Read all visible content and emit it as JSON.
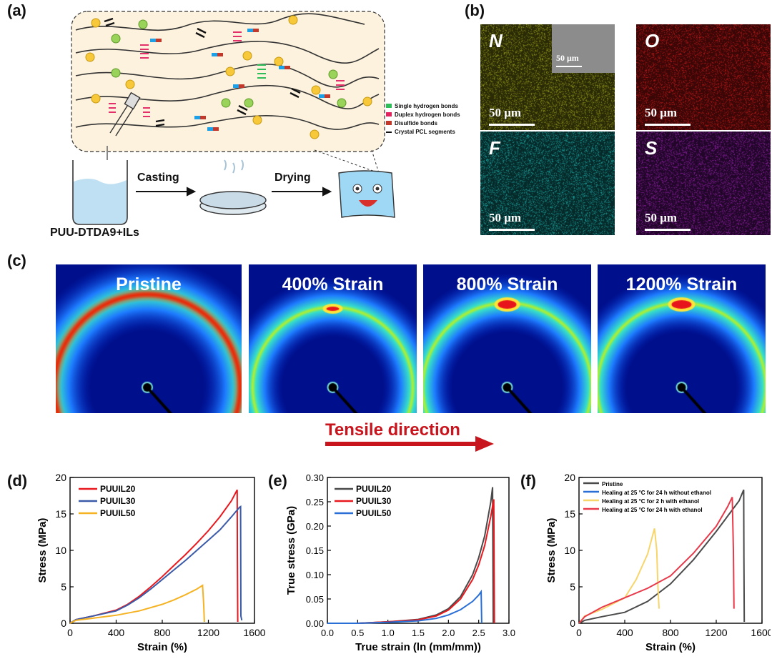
{
  "panels": {
    "a": {
      "label": "(a)",
      "legend": [
        {
          "text": "Single hydrogen bonds",
          "color": "#2ebd59"
        },
        {
          "text": "Duplex hydrogen bonds",
          "color": "#e0245e"
        },
        {
          "text": "Disulfide bonds",
          "color": "#c0392b"
        },
        {
          "text": "Crystal PCL segments",
          "color": "#111111"
        }
      ],
      "process": {
        "casting": "Casting",
        "drying": "Drying",
        "solution": "PUU-DTDA9+ILs"
      }
    },
    "b": {
      "label": "(b)",
      "maps": [
        {
          "element": "N",
          "scale": "50 μm",
          "color": "#2a2a06",
          "dot": "#9aa21a"
        },
        {
          "element": "O",
          "scale": "50 μm",
          "color": "#3a0606",
          "dot": "#c21a1a"
        },
        {
          "element": "F",
          "scale": "50 μm",
          "color": "#062a2a",
          "dot": "#1ba7a3"
        },
        {
          "element": "S",
          "scale": "50 μm",
          "color": "#22062a",
          "dot": "#8e1fa3"
        }
      ],
      "inset_scale": "50 μm"
    },
    "c": {
      "label": "(c)",
      "frames": [
        "Pristine",
        "400% Strain",
        "800% Strain",
        "1200% Strain"
      ],
      "arrow_label": "Tensile direction"
    },
    "d": {
      "label": "(d)"
    },
    "e": {
      "label": "(e)"
    },
    "f": {
      "label": "(f)"
    }
  },
  "chart_data": [
    {
      "id": "d",
      "type": "line",
      "xlabel": "Strain (%)",
      "ylabel": "Stress (MPa)",
      "xlim": [
        0,
        1600
      ],
      "ylim": [
        0,
        20
      ],
      "xticks": [
        0,
        400,
        800,
        1200,
        1600
      ],
      "yticks": [
        0,
        5,
        10,
        15,
        20
      ],
      "legend_position": "top-left",
      "series": [
        {
          "name": "PUUIL20",
          "color": "#e8191e",
          "x": [
            0,
            50,
            200,
            400,
            500,
            600,
            700,
            800,
            900,
            1000,
            1100,
            1200,
            1300,
            1400,
            1450,
            1452,
            1455
          ],
          "y": [
            0,
            0.5,
            1.0,
            1.8,
            2.6,
            3.7,
            5.0,
            6.4,
            7.9,
            9.4,
            11.0,
            12.7,
            14.6,
            16.8,
            18.3,
            9.0,
            0.2
          ]
        },
        {
          "name": "PUUIL30",
          "color": "#3b5ba8",
          "x": [
            0,
            50,
            200,
            400,
            500,
            600,
            700,
            800,
            900,
            1000,
            1100,
            1200,
            1300,
            1400,
            1470,
            1480,
            1482,
            1490
          ],
          "y": [
            0,
            0.5,
            1.0,
            1.7,
            2.5,
            3.5,
            4.7,
            6.0,
            7.3,
            8.6,
            10.0,
            11.4,
            12.8,
            14.6,
            15.9,
            16.0,
            1.0,
            0.4
          ]
        },
        {
          "name": "PUUIL50",
          "color": "#f5b324",
          "x": [
            0,
            50,
            200,
            400,
            600,
            800,
            900,
            1000,
            1100,
            1150,
            1160,
            1165
          ],
          "y": [
            0,
            0.4,
            0.7,
            1.1,
            1.7,
            2.6,
            3.2,
            3.9,
            4.7,
            5.2,
            2.5,
            0.2
          ]
        }
      ]
    },
    {
      "id": "e",
      "type": "line",
      "xlabel": "True strain (ln (mm/mm))",
      "ylabel": "True stress (GPa)",
      "xlim": [
        0,
        3.0
      ],
      "ylim": [
        0,
        0.3
      ],
      "xticks": [
        0.0,
        0.5,
        1.0,
        1.5,
        2.0,
        2.5,
        3.0
      ],
      "yticks": [
        0.0,
        0.05,
        0.1,
        0.15,
        0.2,
        0.25,
        0.3
      ],
      "legend_position": "top-left",
      "series": [
        {
          "name": "PUUIL20",
          "color": "#4a4a4a",
          "x": [
            0,
            0.5,
            1.0,
            1.5,
            1.8,
            2.0,
            2.2,
            2.4,
            2.5,
            2.6,
            2.7,
            2.73,
            2.74
          ],
          "y": [
            0,
            0.0,
            0.003,
            0.008,
            0.017,
            0.03,
            0.055,
            0.1,
            0.135,
            0.18,
            0.25,
            0.28,
            0.0
          ]
        },
        {
          "name": "PUUIL30",
          "color": "#e8191e",
          "x": [
            0,
            0.5,
            1.0,
            1.5,
            1.8,
            2.0,
            2.2,
            2.4,
            2.5,
            2.6,
            2.7,
            2.75,
            2.76
          ],
          "y": [
            0,
            0.0,
            0.003,
            0.007,
            0.015,
            0.027,
            0.05,
            0.09,
            0.12,
            0.16,
            0.22,
            0.255,
            0.0
          ]
        },
        {
          "name": "PUUIL50",
          "color": "#2a6fd6",
          "x": [
            0,
            0.5,
            1.0,
            1.5,
            1.8,
            2.0,
            2.2,
            2.4,
            2.5,
            2.54,
            2.55
          ],
          "y": [
            0,
            0.0,
            0.002,
            0.005,
            0.01,
            0.017,
            0.028,
            0.045,
            0.058,
            0.065,
            0.0
          ]
        }
      ]
    },
    {
      "id": "f",
      "type": "line",
      "xlabel": "Strain (%)",
      "ylabel": "Stress (MPa)",
      "xlim": [
        0,
        1600
      ],
      "ylim": [
        0,
        20
      ],
      "xticks": [
        0,
        400,
        800,
        1200,
        1600
      ],
      "yticks": [
        0,
        5,
        10,
        15,
        20
      ],
      "legend_position": "top-left",
      "series": [
        {
          "name": "Pristine",
          "color": "#4a4a4a",
          "x": [
            0,
            50,
            200,
            400,
            600,
            800,
            1000,
            1200,
            1400,
            1440,
            1442,
            1445
          ],
          "y": [
            0,
            0.4,
            0.9,
            1.5,
            3.0,
            5.4,
            8.7,
            12.6,
            16.8,
            18.3,
            9.0,
            0.2
          ]
        },
        {
          "name": "Healing at 25 °C for 24 h without ethanol",
          "color": "#2a6fd6",
          "x": [],
          "y": []
        },
        {
          "name": "Healing at 25 °C for 2 h with ethanol",
          "color": "#f7d56a",
          "x": [
            0,
            50,
            200,
            400,
            500,
            600,
            660,
            680,
            690,
            700
          ],
          "y": [
            0,
            1.0,
            1.9,
            3.5,
            6.0,
            9.5,
            13.0,
            10.0,
            5.0,
            2.0
          ]
        },
        {
          "name": "Healing at 25 °C for 24 h with ethanol",
          "color": "#e8394a",
          "x": [
            0,
            50,
            200,
            400,
            600,
            800,
            1000,
            1200,
            1300,
            1340,
            1350,
            1355
          ],
          "y": [
            0,
            0.9,
            2.2,
            3.5,
            4.8,
            6.5,
            9.6,
            13.3,
            16.0,
            17.3,
            10.0,
            2.0
          ]
        }
      ]
    }
  ]
}
